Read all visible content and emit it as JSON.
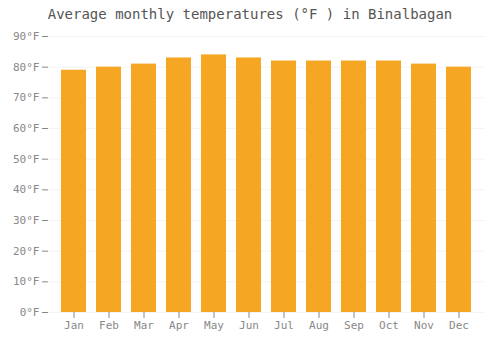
{
  "chart_data": {
    "type": "bar",
    "title": "Average monthly temperatures (°F ) in Binalbagan",
    "categories": [
      "Jan",
      "Feb",
      "Mar",
      "Apr",
      "May",
      "Jun",
      "Jul",
      "Aug",
      "Sep",
      "Oct",
      "Nov",
      "Dec"
    ],
    "values": [
      79,
      80,
      81,
      83,
      84,
      83,
      82,
      82,
      82,
      82,
      81,
      80
    ],
    "color": "#F5A623",
    "ylim": [
      0,
      90
    ],
    "yticks": [
      {
        "value": 0,
        "label": "0°F"
      },
      {
        "value": 10,
        "label": "10°F"
      },
      {
        "value": 20,
        "label": "20°F"
      },
      {
        "value": 30,
        "label": "30°F"
      },
      {
        "value": 40,
        "label": "40°F"
      },
      {
        "value": 50,
        "label": "50°F"
      },
      {
        "value": 60,
        "label": "60°F"
      },
      {
        "value": 70,
        "label": "70°F"
      },
      {
        "value": 80,
        "label": "80°F"
      },
      {
        "value": 90,
        "label": "90°F"
      }
    ],
    "grid": true
  }
}
